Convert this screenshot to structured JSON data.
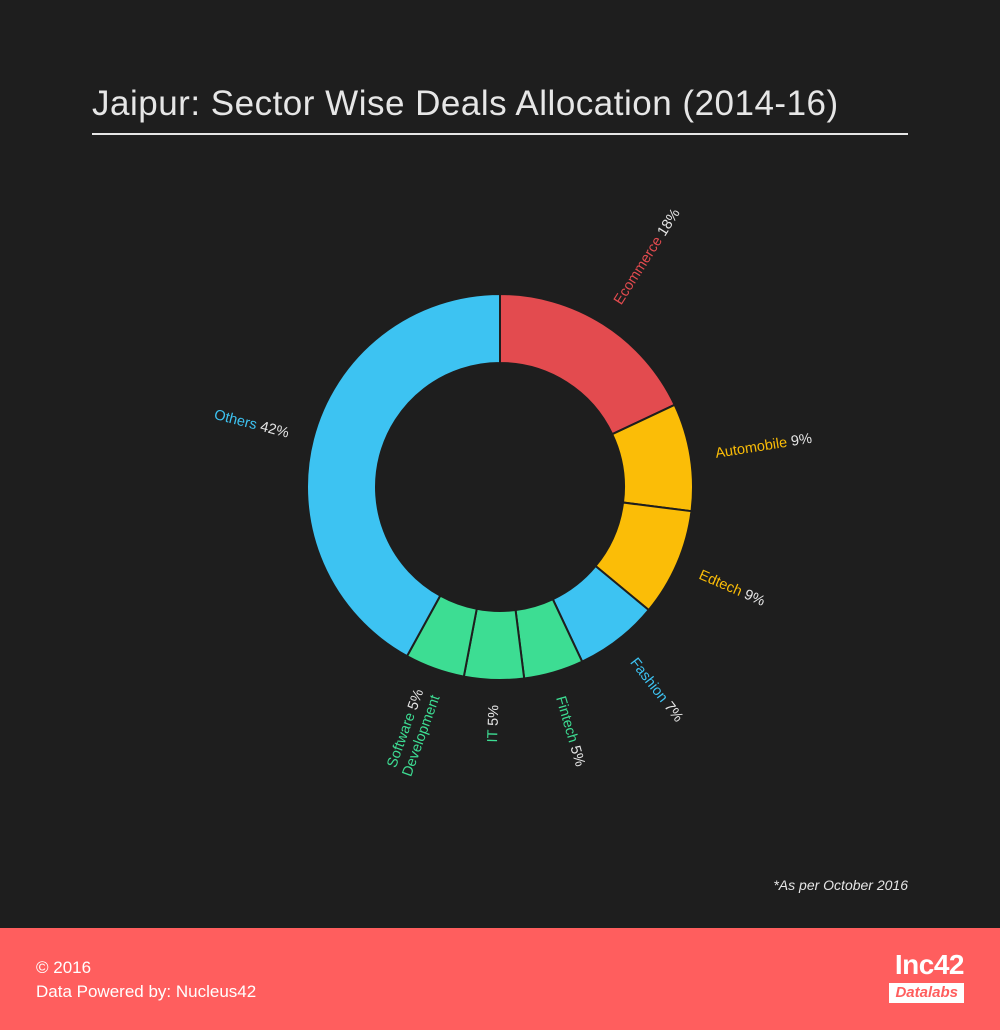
{
  "title": "Jaipur: Sector Wise Deals Allocation (2014-16)",
  "chart_data": {
    "type": "pie",
    "title": "Jaipur: Sector Wise Deals Allocation (2014-16)",
    "slices": [
      {
        "label": "Ecommerce",
        "value": 18,
        "pct_label": "18%",
        "color": "#e34b4f"
      },
      {
        "label": "Automobile",
        "value": 9,
        "pct_label": "9%",
        "color": "#fbbd07"
      },
      {
        "label": "Edtech",
        "value": 9,
        "pct_label": "9%",
        "color": "#fbbd07"
      },
      {
        "label": "Fashion",
        "value": 7,
        "pct_label": "7%",
        "color": "#3dc3f2"
      },
      {
        "label": "Fintech",
        "value": 5,
        "pct_label": "5%",
        "color": "#3ddd93"
      },
      {
        "label": "IT",
        "value": 5,
        "pct_label": "5%",
        "color": "#3ddd93"
      },
      {
        "label": "Software Development",
        "label_lines": [
          "Software",
          "Development"
        ],
        "value": 5,
        "pct_label": "5%",
        "color": "#3ddd93"
      },
      {
        "label": "Others",
        "value": 42,
        "pct_label": "42%",
        "color": "#3dc3f2"
      }
    ]
  },
  "footnote": "*As per October 2016",
  "footer": {
    "copyright": "© 2016",
    "powered_by": "Data Powered by: Nucleus42",
    "brand_name": "Inc42",
    "brand_sub": "Datalabs"
  }
}
